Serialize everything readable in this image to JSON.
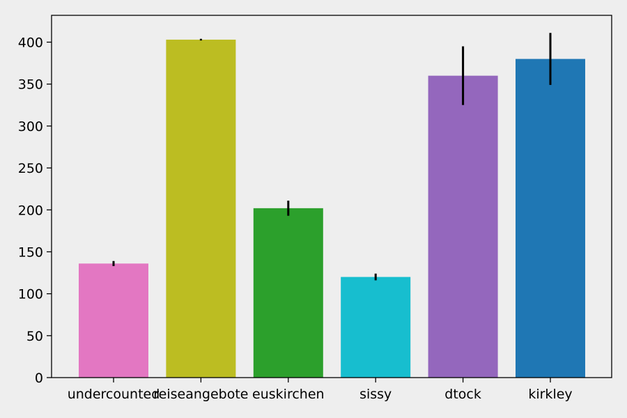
{
  "chart_data": {
    "type": "bar",
    "title": "",
    "xlabel": "",
    "ylabel": "",
    "categories": [
      "undercounted",
      "reiseangebote",
      "euskirchen",
      "sissy",
      "dtock",
      "kirkley"
    ],
    "values": [
      136,
      403,
      202,
      120,
      360,
      380
    ],
    "error": [
      3,
      1,
      9,
      4,
      35,
      31
    ],
    "colors": [
      "#e377c2",
      "#bcbd22",
      "#2ca02c",
      "#17becf",
      "#9467bd",
      "#1f77b4"
    ],
    "ylim": [
      0,
      432
    ],
    "yticks": [
      0,
      50,
      100,
      150,
      200,
      250,
      300,
      350,
      400
    ],
    "ytick_labels": [
      "0",
      "50",
      "100",
      "150",
      "200",
      "250",
      "300",
      "350",
      "400"
    ],
    "grid": false,
    "legend": "none",
    "background": "#eeeeee",
    "error_bar_color": "#000000"
  }
}
